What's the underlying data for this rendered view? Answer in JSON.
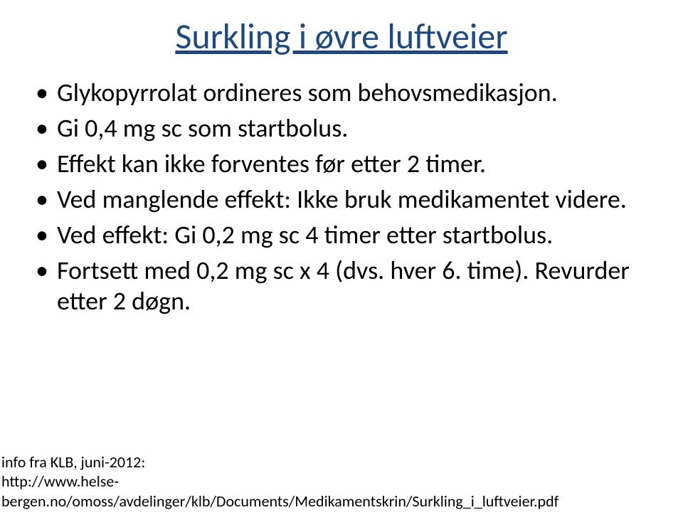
{
  "title": {
    "text": "Surkling i øvre luftveier",
    "color": "#1f497d",
    "fontsize": 50,
    "weight": "400"
  },
  "bullets": {
    "color": "#000000",
    "fontsize": 36,
    "items": [
      "Glykopyrrolat ordineres som behovsmedikasjon.",
      "Gi 0,4 mg sc som startbolus.",
      "Effekt kan ikke forventes før etter 2 timer.",
      "Ved manglende effekt: Ikke bruk medikamentet videre.",
      "Ved effekt: Gi 0,2 mg sc 4 timer etter startbolus.",
      "Fortsett med 0,2 mg sc x 4 (dvs. hver 6. time). Revurder etter 2 døgn."
    ]
  },
  "footer": {
    "color": "#000000",
    "fontsize": 22,
    "lines": [
      "info fra KLB, juni-2012:",
      "http://www.helse-",
      "bergen.no/omoss/avdelinger/klb/Documents/Medikamentskrin/Surkling_i_luftveier.pdf"
    ]
  }
}
